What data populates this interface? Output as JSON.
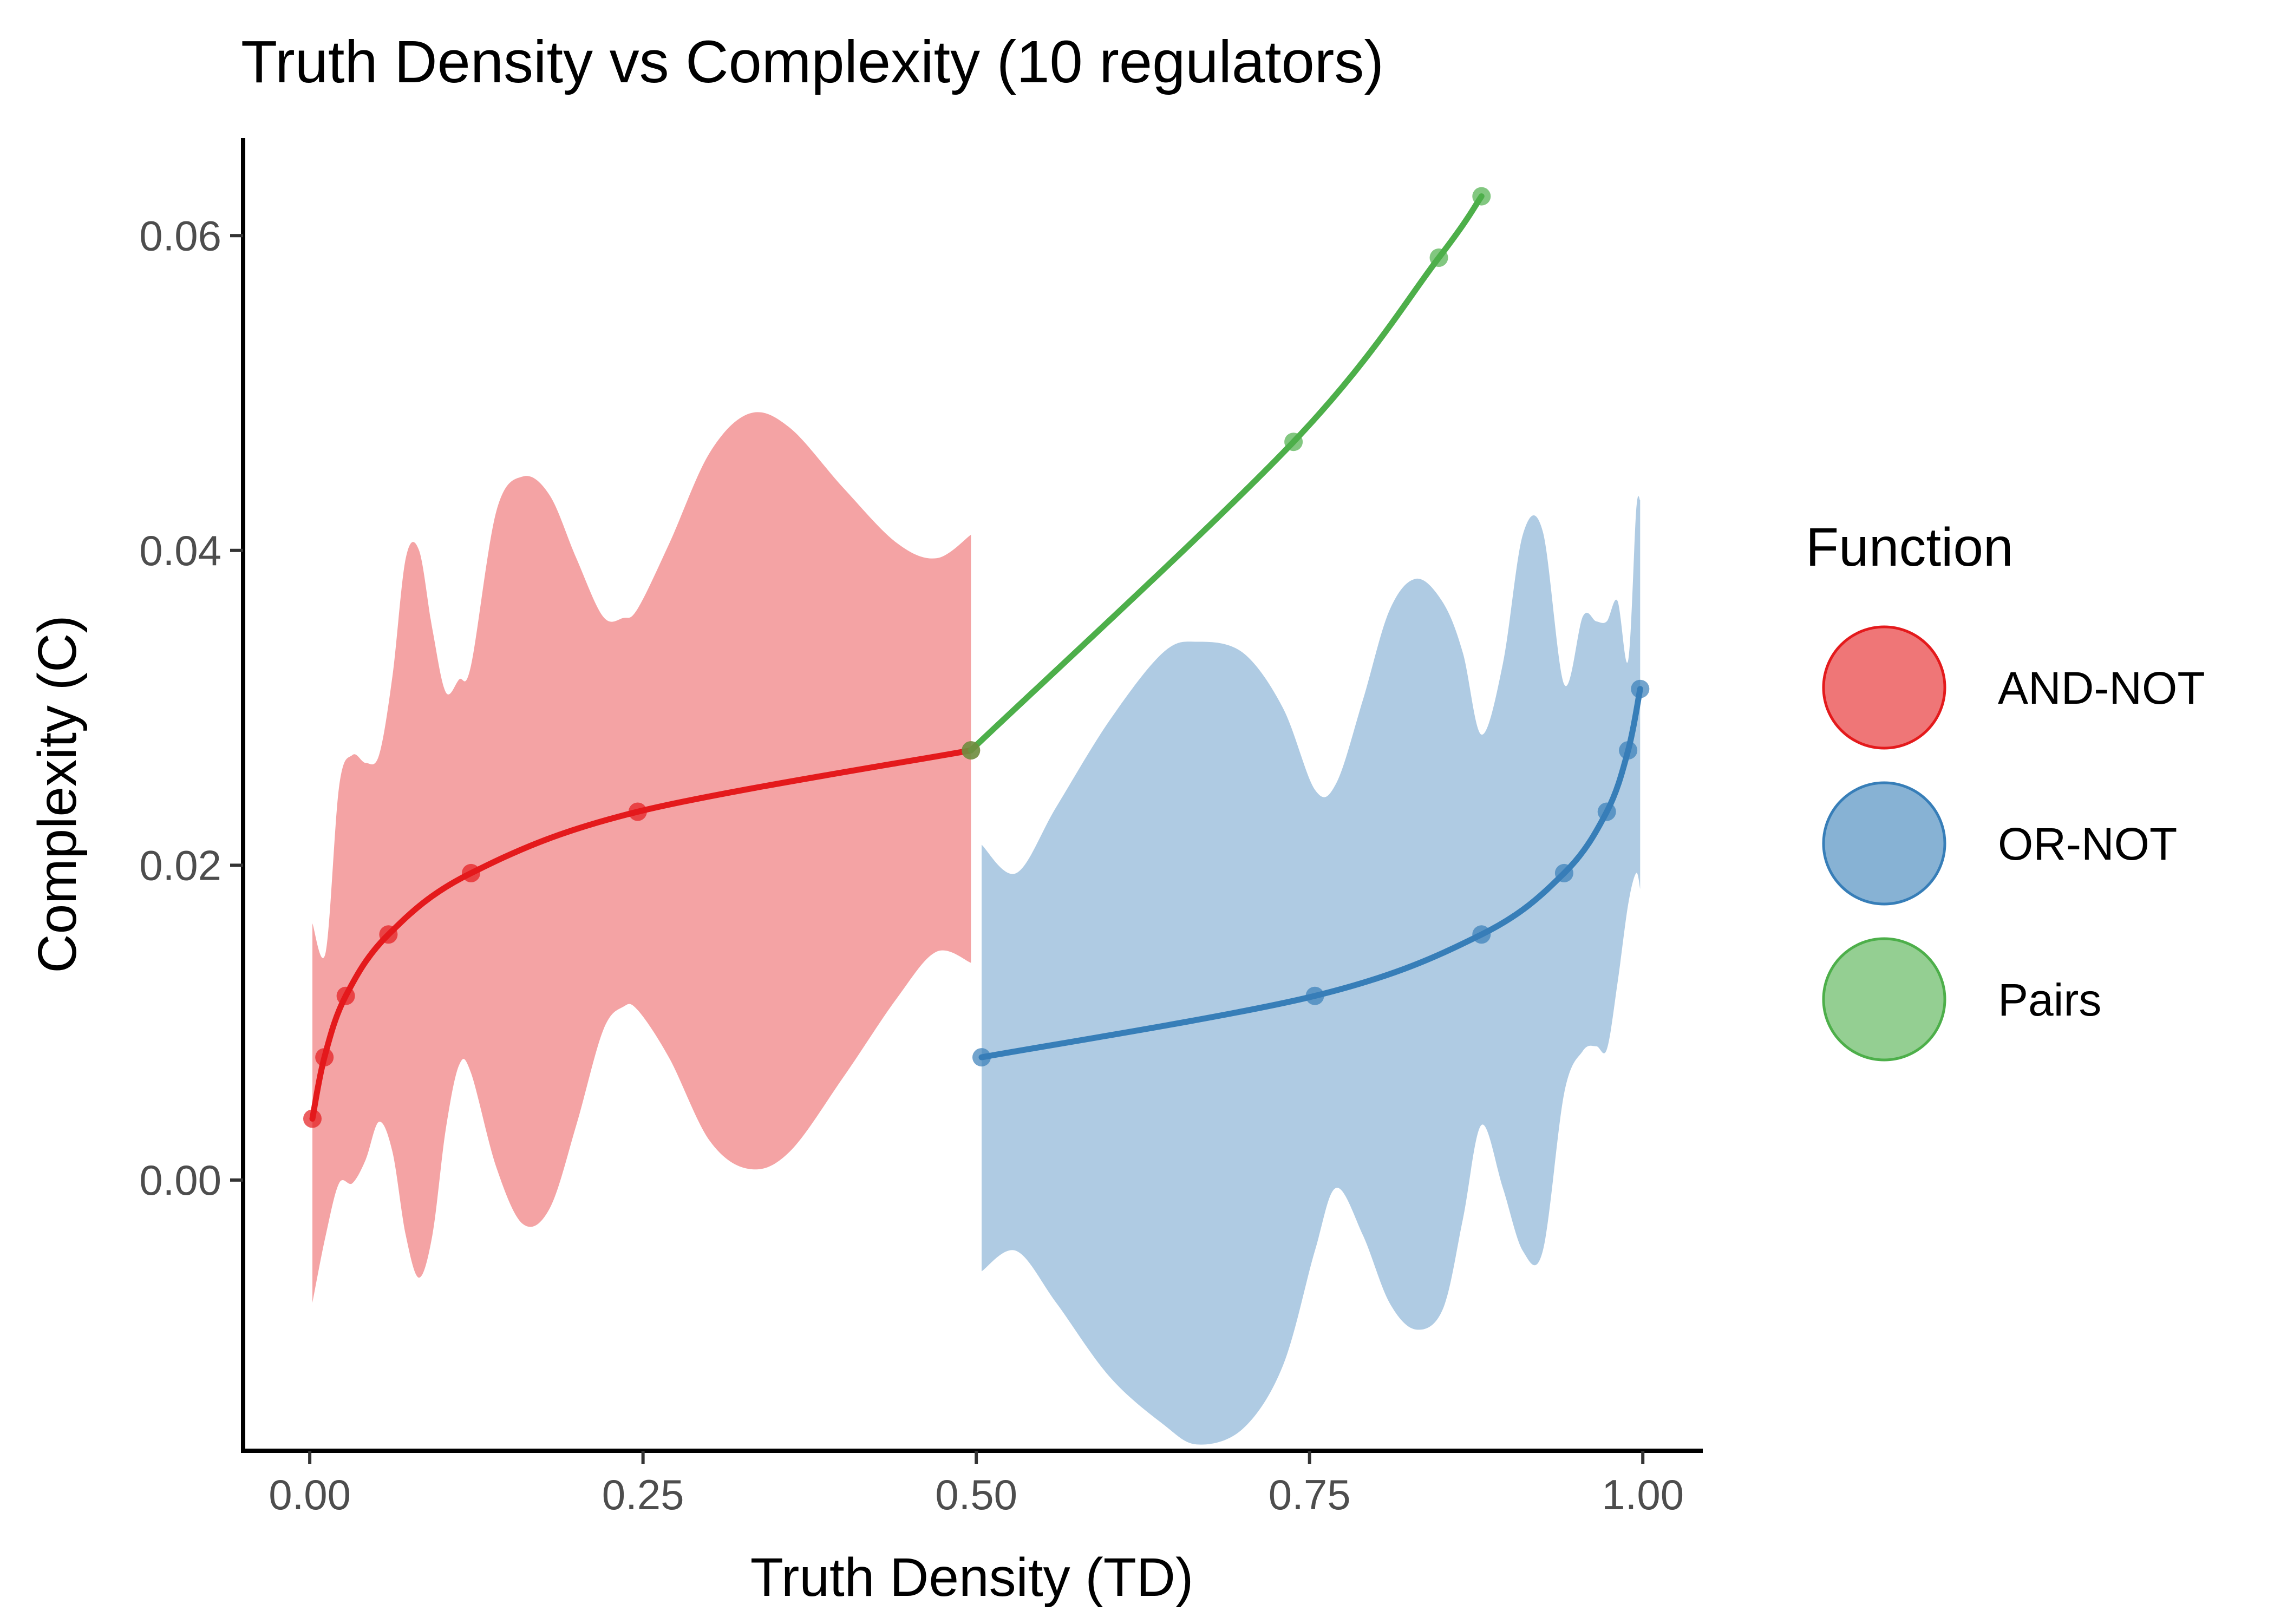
{
  "chart_data": {
    "type": "line",
    "title": "Truth Density vs Complexity (10 regulators)",
    "xlabel": "Truth Density (TD)",
    "ylabel": "Complexity (C)",
    "xlim": [
      -0.05,
      1.045
    ],
    "ylim": [
      -0.0172,
      0.0662
    ],
    "x_ticks": [
      0,
      0.25,
      0.5,
      0.75,
      1
    ],
    "x_tick_labels": [
      "0.00",
      "0.25",
      "0.50",
      "0.75",
      "1.00"
    ],
    "y_ticks": [
      0,
      0.02,
      0.04,
      0.06
    ],
    "y_tick_labels": [
      "0.00",
      "0.02",
      "0.04",
      "0.06"
    ],
    "grid": false,
    "legend": {
      "title": "Function",
      "position": "right"
    },
    "series": [
      {
        "name": "AND-NOT",
        "color": "#e41a1c",
        "points": [
          [
            0.002,
            0.0039
          ],
          [
            0.011,
            0.0078
          ],
          [
            0.027,
            0.0117
          ],
          [
            0.059,
            0.0156
          ],
          [
            0.121,
            0.0195
          ],
          [
            0.246,
            0.0234
          ],
          [
            0.496,
            0.0273
          ]
        ],
        "band": [
          [
            0.002,
            -0.0078,
            0.0163
          ],
          [
            0.012,
            -0.0035,
            0.0145
          ],
          [
            0.022,
            -0.0002,
            0.025
          ],
          [
            0.032,
            -0.0002,
            0.027
          ],
          [
            0.042,
            0.0013,
            0.0265
          ],
          [
            0.052,
            0.0037,
            0.027
          ],
          [
            0.062,
            0.0018,
            0.032
          ],
          [
            0.072,
            -0.0035,
            0.0395
          ],
          [
            0.082,
            -0.0062,
            0.04
          ],
          [
            0.092,
            -0.0035,
            0.035
          ],
          [
            0.102,
            0.0032,
            0.031
          ],
          [
            0.112,
            0.0073,
            0.0318
          ],
          [
            0.121,
            0.0068,
            0.0327
          ],
          [
            0.14,
            0.0008,
            0.0425
          ],
          [
            0.16,
            -0.0028,
            0.0447
          ],
          [
            0.18,
            -0.0018,
            0.0435
          ],
          [
            0.2,
            0.0035,
            0.0395
          ],
          [
            0.22,
            0.0095,
            0.0358
          ],
          [
            0.235,
            0.011,
            0.0357
          ],
          [
            0.246,
            0.0108,
            0.0363
          ],
          [
            0.27,
            0.0077,
            0.0405
          ],
          [
            0.3,
            0.0025,
            0.0462
          ],
          [
            0.33,
            0.0007,
            0.0487
          ],
          [
            0.36,
            0.0018,
            0.0478
          ],
          [
            0.4,
            0.0065,
            0.044
          ],
          [
            0.44,
            0.0115,
            0.0405
          ],
          [
            0.47,
            0.0145,
            0.0395
          ],
          [
            0.496,
            0.0138,
            0.041
          ]
        ]
      },
      {
        "name": "OR-NOT",
        "color": "#377eb8",
        "points": [
          [
            0.504,
            0.0078
          ],
          [
            0.754,
            0.0117
          ],
          [
            0.879,
            0.0156
          ],
          [
            0.941,
            0.0195
          ],
          [
            0.973,
            0.0234
          ],
          [
            0.989,
            0.0273
          ],
          [
            0.998,
            0.0312
          ]
        ],
        "band": [
          [
            0.504,
            -0.0058,
            0.0213
          ],
          [
            0.53,
            -0.0045,
            0.0195
          ],
          [
            0.56,
            -0.0078,
            0.0237
          ],
          [
            0.6,
            -0.0125,
            0.0292
          ],
          [
            0.64,
            -0.0155,
            0.0335
          ],
          [
            0.666,
            -0.0168,
            0.0342
          ],
          [
            0.7,
            -0.0158,
            0.0335
          ],
          [
            0.73,
            -0.0118,
            0.03
          ],
          [
            0.754,
            -0.0045,
            0.0248
          ],
          [
            0.77,
            -0.0005,
            0.0252
          ],
          [
            0.79,
            -0.0035,
            0.0305
          ],
          [
            0.81,
            -0.0078,
            0.0362
          ],
          [
            0.83,
            -0.0095,
            0.0382
          ],
          [
            0.85,
            -0.0082,
            0.0367
          ],
          [
            0.865,
            -0.0025,
            0.0335
          ],
          [
            0.879,
            0.0035,
            0.0283
          ],
          [
            0.895,
            -0.0005,
            0.0328
          ],
          [
            0.91,
            -0.0045,
            0.041
          ],
          [
            0.925,
            -0.0045,
            0.0412
          ],
          [
            0.941,
            0.0055,
            0.0315
          ],
          [
            0.955,
            0.0082,
            0.0358
          ],
          [
            0.965,
            0.0085,
            0.0355
          ],
          [
            0.973,
            0.0083,
            0.0355
          ],
          [
            0.981,
            0.0125,
            0.0368
          ],
          [
            0.989,
            0.0175,
            0.033
          ],
          [
            0.995,
            0.0195,
            0.0425
          ],
          [
            0.998,
            0.0185,
            0.0432
          ]
        ]
      },
      {
        "name": "Pairs",
        "color": "#4daf4a",
        "points": [
          [
            0.496,
            0.0273
          ],
          [
            0.738,
            0.0469
          ],
          [
            0.847,
            0.0586
          ],
          [
            0.879,
            0.0625
          ]
        ]
      }
    ]
  }
}
